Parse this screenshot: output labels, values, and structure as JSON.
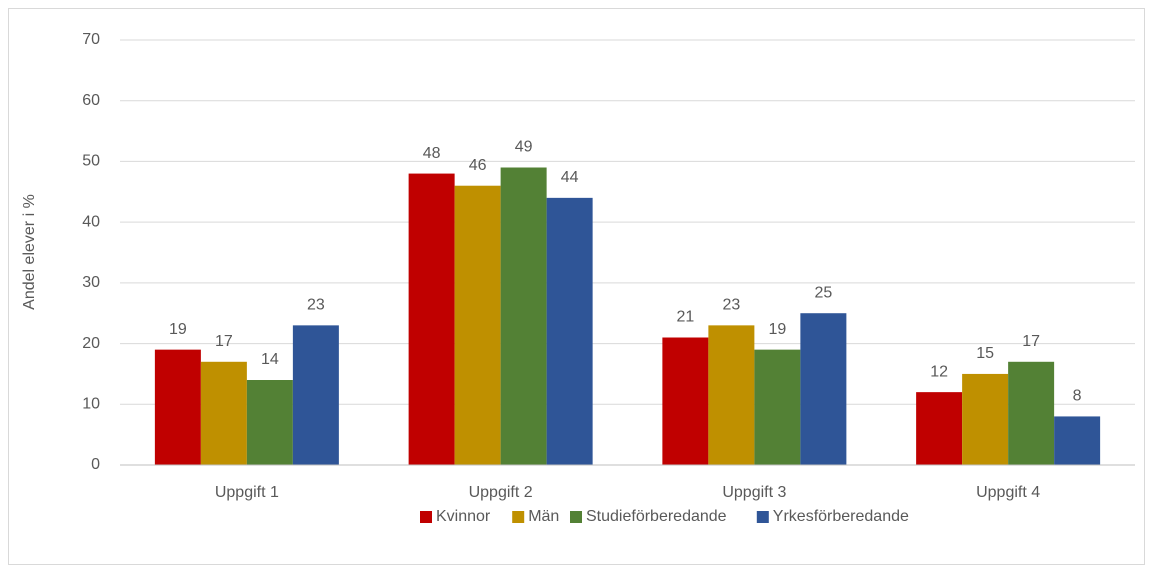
{
  "chart_data": {
    "type": "bar",
    "y_axis_label": "Andel elever i %",
    "categories": [
      "Uppgift 1",
      "Uppgift 2",
      "Uppgift 3",
      "Uppgift 4"
    ],
    "series": [
      {
        "name": "Kvinnor",
        "color": "#c00000",
        "values": [
          19,
          48,
          21,
          12
        ]
      },
      {
        "name": "Män",
        "color": "#bf9000",
        "values": [
          17,
          46,
          23,
          15
        ]
      },
      {
        "name": "Studieförberedande",
        "color": "#538135",
        "values": [
          14,
          49,
          19,
          17
        ]
      },
      {
        "name": "Yrkesförberedande",
        "color": "#2f5597",
        "values": [
          23,
          44,
          25,
          8
        ]
      }
    ],
    "ylim": [
      0,
      70
    ],
    "yticks": [
      0,
      10,
      20,
      30,
      40,
      50,
      60,
      70
    ],
    "grid": true,
    "legend": "bottom"
  }
}
